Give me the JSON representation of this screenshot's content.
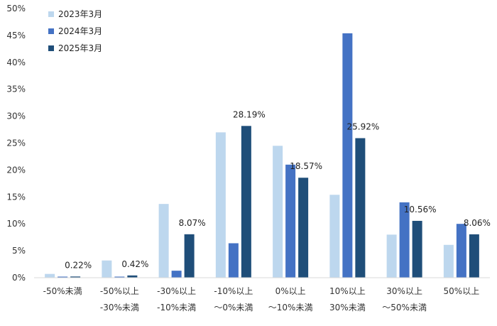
{
  "chart_data": {
    "type": "bar",
    "categories": [
      [
        "-50%未満",
        ""
      ],
      [
        "-50%以上",
        "-30%未満"
      ],
      [
        "-30%以上",
        "-10%未満"
      ],
      [
        "-10%以上",
        "～0%未満"
      ],
      [
        "0%以上",
        "～10%未満"
      ],
      [
        "10%以上",
        "30%未満"
      ],
      [
        "30%以上",
        "～50%未満"
      ],
      [
        "50%以上",
        ""
      ]
    ],
    "series": [
      {
        "name": "2023年3月",
        "color": "#bdd7ee",
        "values": [
          0.7,
          3.2,
          13.7,
          27.0,
          24.5,
          15.4,
          8.0,
          6.1
        ]
      },
      {
        "name": "2024年3月",
        "color": "#4472c4",
        "values": [
          0.2,
          0.2,
          1.3,
          6.4,
          21.0,
          45.4,
          14.0,
          10.0
        ]
      },
      {
        "name": "2025年3月",
        "color": "#1f4e79",
        "values": [
          0.22,
          0.42,
          8.07,
          28.19,
          18.57,
          25.92,
          10.56,
          8.06
        ]
      }
    ],
    "data_labels": {
      "series": "2025年3月",
      "labels": [
        "0.22%",
        "0.42%",
        "8.07%",
        "28.19%",
        "18.57%",
        "25.92%",
        "10.56%",
        "8.06%"
      ]
    },
    "ylim": [
      0,
      50
    ],
    "yticks": [
      0,
      5,
      10,
      15,
      20,
      25,
      30,
      35,
      40,
      45,
      50
    ],
    "ytick_labels": [
      "0%",
      "5%",
      "10%",
      "15%",
      "20%",
      "25%",
      "30%",
      "35%",
      "40%",
      "45%",
      "50%"
    ],
    "legend_position": "top-left",
    "grid": false,
    "title": "",
    "xlabel": "",
    "ylabel": ""
  }
}
